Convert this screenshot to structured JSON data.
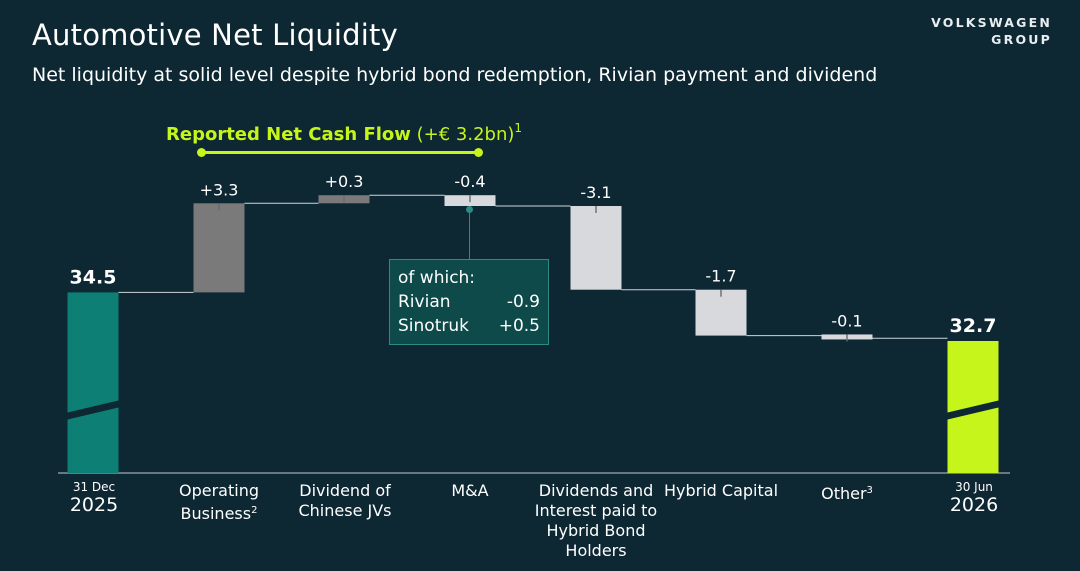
{
  "header": {
    "title": "Automotive Net Liquidity",
    "subtitle": "Net liquidity at solid level despite hybrid bond redemption, Rivian payment and dividend",
    "logo_line1": "VOLKSWAGEN",
    "logo_line2": "GROUP"
  },
  "callout": {
    "title_strong": "Reported Net Cash Flow",
    "title_rest": " (+€ 3.2bn)",
    "title_sup": "1"
  },
  "ofwhich": {
    "heading": "of which:",
    "rows": [
      {
        "label": "Rivian",
        "value": "-0.9"
      },
      {
        "label": "Sinotruk",
        "value": "+0.5"
      }
    ]
  },
  "chart_data": {
    "type": "bar",
    "subtype": "waterfall",
    "categories": [
      "31 Dec 2025",
      "Operating Business",
      "Dividend of Chinese JVs",
      "M&A",
      "Dividends and Interest paid to Hybrid Bond Holders",
      "Hybrid Capital",
      "Other",
      "30 Jun 2026"
    ],
    "values": [
      34.5,
      3.3,
      0.3,
      -0.4,
      -3.1,
      -1.7,
      -0.1,
      32.7
    ],
    "value_labels": [
      "34.5",
      "+3.3",
      "+0.3",
      "-0.4",
      "-3.1",
      "-1.7",
      "-0.1",
      "32.7"
    ],
    "kinds": [
      "total",
      "delta",
      "delta",
      "delta",
      "delta",
      "delta",
      "delta",
      "total"
    ],
    "colors": {
      "start_total": "#0e7f74",
      "end_total": "#c6f51b",
      "positive": "#7a7a7a",
      "negative": "#d7d9dc",
      "callout": "#c6f51b"
    },
    "axis_break": true
  },
  "xlabels": [
    {
      "small": "31 Dec",
      "big": "2025"
    },
    {
      "text": "Operating Business",
      "sup": "2"
    },
    {
      "text": "Dividend of Chinese JVs"
    },
    {
      "text": "M&A"
    },
    {
      "text": "Dividends and Interest paid to Hybrid Bond Holders"
    },
    {
      "text": "Hybrid Capital"
    },
    {
      "text": "Other",
      "sup": "3"
    },
    {
      "small": "30 Jun",
      "big": "2026"
    }
  ]
}
